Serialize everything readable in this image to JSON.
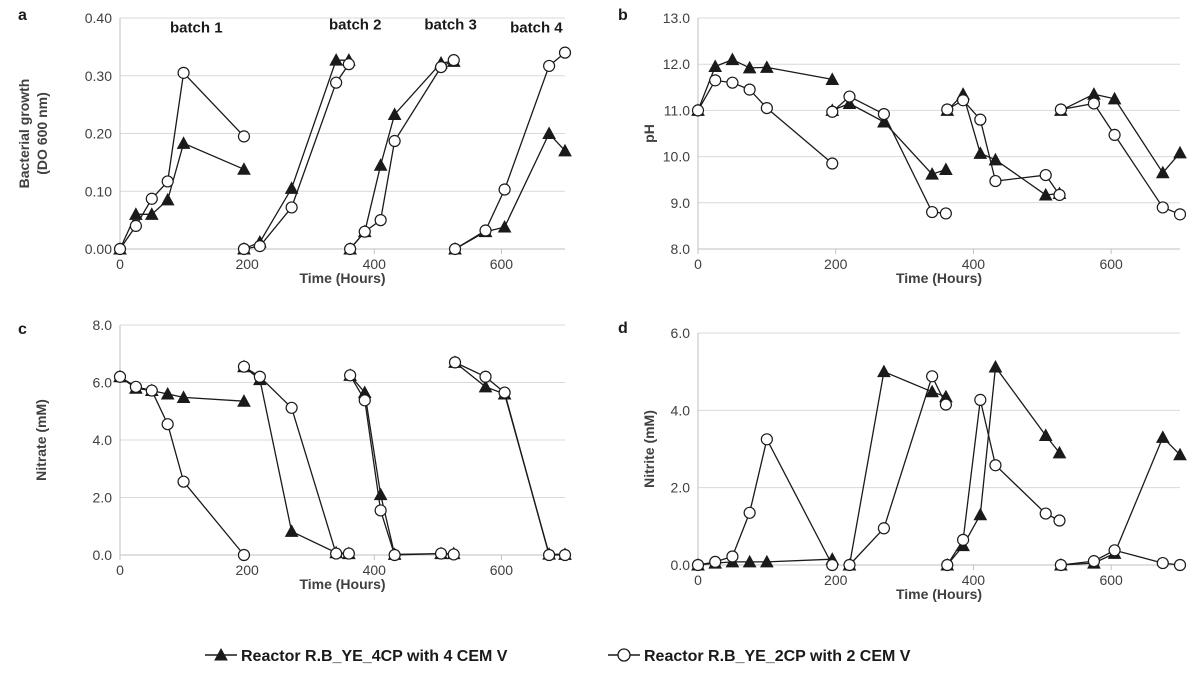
{
  "legend": [
    {
      "label": "Reactor R.B_YE_4CP with 4 CEM V",
      "marker": "triangle"
    },
    {
      "label": "Reactor R.B_YE_2CP with 2 CEM V",
      "marker": "circle"
    }
  ],
  "chart_data": [
    {
      "type": "line",
      "panel": "a",
      "xlabel": "Time (Hours)",
      "ylabel": [
        "Bacterial growth",
        "(DO 600 nm)"
      ],
      "xlim": [
        0,
        700
      ],
      "xticks": [
        0,
        200,
        400,
        600
      ],
      "ylim": [
        0,
        0.4
      ],
      "yticks": [
        0,
        0.1,
        0.2,
        0.3,
        0.4
      ],
      "ydecimals": 2,
      "grid": "horizontal",
      "annotations": [
        {
          "text": "batch 1",
          "x": 120,
          "y": 0.375
        },
        {
          "text": "batch 2",
          "x": 370,
          "y": 0.38
        },
        {
          "text": "batch 3",
          "x": 520,
          "y": 0.38
        },
        {
          "text": "batch 4",
          "x": 655,
          "y": 0.375
        }
      ],
      "series": [
        {
          "marker": "triangle",
          "segments": [
            [
              [
                0,
                0
              ],
              [
                25,
                0.06
              ],
              [
                50,
                0.06
              ],
              [
                75,
                0.085
              ],
              [
                100,
                0.183
              ],
              [
                195,
                0.138
              ]
            ],
            [
              [
                195,
                0
              ],
              [
                220,
                0.012
              ],
              [
                270,
                0.105
              ],
              [
                340,
                0.327
              ],
              [
                360,
                0.327
              ]
            ],
            [
              [
                362,
                0
              ],
              [
                385,
                0.03
              ],
              [
                410,
                0.145
              ],
              [
                432,
                0.233
              ],
              [
                505,
                0.322
              ],
              [
                525,
                0.325
              ]
            ],
            [
              [
                527,
                0
              ],
              [
                575,
                0.03
              ],
              [
                605,
                0.038
              ],
              [
                675,
                0.2
              ],
              [
                700,
                0.17
              ]
            ]
          ]
        },
        {
          "marker": "circle",
          "segments": [
            [
              [
                0,
                0
              ],
              [
                25,
                0.04
              ],
              [
                50,
                0.087
              ],
              [
                75,
                0.117
              ],
              [
                100,
                0.305
              ],
              [
                195,
                0.195
              ]
            ],
            [
              [
                195,
                0
              ],
              [
                220,
                0.005
              ],
              [
                270,
                0.072
              ],
              [
                340,
                0.288
              ],
              [
                360,
                0.32
              ]
            ],
            [
              [
                362,
                0
              ],
              [
                385,
                0.03
              ],
              [
                410,
                0.05
              ],
              [
                432,
                0.187
              ],
              [
                505,
                0.315
              ],
              [
                525,
                0.327
              ]
            ],
            [
              [
                527,
                0
              ],
              [
                575,
                0.032
              ],
              [
                605,
                0.103
              ],
              [
                675,
                0.317
              ],
              [
                700,
                0.34
              ]
            ]
          ]
        }
      ]
    },
    {
      "type": "line",
      "panel": "b",
      "xlabel": "Time (Hours)",
      "ylabel": [
        "pH"
      ],
      "xlim": [
        0,
        700
      ],
      "xticks": [
        0,
        200,
        400,
        600
      ],
      "ylim": [
        8,
        13
      ],
      "yticks": [
        8,
        9,
        10,
        11,
        12,
        13
      ],
      "ydecimals": 1,
      "grid": "horizontal",
      "series": [
        {
          "marker": "triangle",
          "segments": [
            [
              [
                0,
                11
              ],
              [
                25,
                11.95
              ],
              [
                50,
                12.1
              ],
              [
                75,
                11.92
              ],
              [
                100,
                11.93
              ],
              [
                195,
                11.67
              ]
            ],
            [
              [
                195,
                11
              ],
              [
                220,
                11.15
              ],
              [
                270,
                10.75
              ],
              [
                340,
                9.62
              ],
              [
                360,
                9.72
              ]
            ],
            [
              [
                362,
                11
              ],
              [
                385,
                11.35
              ],
              [
                410,
                10.07
              ],
              [
                432,
                9.93
              ],
              [
                505,
                9.17
              ],
              [
                525,
                9.2
              ]
            ],
            [
              [
                527,
                11
              ],
              [
                575,
                11.35
              ],
              [
                605,
                11.25
              ],
              [
                675,
                9.65
              ],
              [
                700,
                10.08
              ]
            ]
          ]
        },
        {
          "marker": "circle",
          "segments": [
            [
              [
                0,
                11
              ],
              [
                25,
                11.65
              ],
              [
                50,
                11.6
              ],
              [
                75,
                11.45
              ],
              [
                100,
                11.05
              ],
              [
                195,
                9.85
              ]
            ],
            [
              [
                195,
                10.97
              ],
              [
                220,
                11.3
              ],
              [
                270,
                10.92
              ],
              [
                340,
                8.8
              ],
              [
                360,
                8.77
              ]
            ],
            [
              [
                362,
                11.02
              ],
              [
                385,
                11.22
              ],
              [
                410,
                10.8
              ],
              [
                432,
                9.47
              ],
              [
                505,
                9.6
              ],
              [
                525,
                9.17
              ]
            ],
            [
              [
                527,
                11.02
              ],
              [
                575,
                11.15
              ],
              [
                605,
                10.47
              ],
              [
                675,
                8.9
              ],
              [
                700,
                8.75
              ]
            ]
          ]
        }
      ]
    },
    {
      "type": "line",
      "panel": "c",
      "xlabel": "Time (Hours)",
      "ylabel": [
        "Nitrate (mM)"
      ],
      "xlim": [
        0,
        700
      ],
      "xticks": [
        0,
        200,
        400,
        600
      ],
      "ylim": [
        0,
        8
      ],
      "yticks": [
        0,
        2,
        4,
        6,
        8
      ],
      "ydecimals": 1,
      "grid": "horizontal",
      "series": [
        {
          "marker": "triangle",
          "segments": [
            [
              [
                0,
                6.2
              ],
              [
                25,
                5.8
              ],
              [
                50,
                5.72
              ],
              [
                75,
                5.6
              ],
              [
                100,
                5.48
              ],
              [
                195,
                5.35
              ]
            ],
            [
              [
                195,
                6.55
              ],
              [
                220,
                6.1
              ],
              [
                270,
                0.82
              ],
              [
                340,
                0.08
              ],
              [
                360,
                0.05
              ]
            ],
            [
              [
                362,
                6.25
              ],
              [
                385,
                5.65
              ],
              [
                410,
                2.1
              ],
              [
                432,
                0.02
              ],
              [
                505,
                0.05
              ],
              [
                525,
                0.05
              ]
            ],
            [
              [
                527,
                6.7
              ],
              [
                575,
                5.85
              ],
              [
                605,
                5.6
              ],
              [
                675,
                0.03
              ],
              [
                700,
                0.02
              ]
            ]
          ]
        },
        {
          "marker": "circle",
          "segments": [
            [
              [
                0,
                6.2
              ],
              [
                25,
                5.85
              ],
              [
                50,
                5.72
              ],
              [
                75,
                4.55
              ],
              [
                100,
                2.55
              ],
              [
                195,
                0
              ]
            ],
            [
              [
                195,
                6.55
              ],
              [
                220,
                6.2
              ],
              [
                270,
                5.12
              ],
              [
                340,
                0.05
              ],
              [
                360,
                0.05
              ]
            ],
            [
              [
                362,
                6.25
              ],
              [
                385,
                5.38
              ],
              [
                410,
                1.55
              ],
              [
                432,
                0
              ],
              [
                505,
                0.05
              ],
              [
                525,
                0.02
              ]
            ],
            [
              [
                527,
                6.7
              ],
              [
                575,
                6.2
              ],
              [
                605,
                5.65
              ],
              [
                675,
                0
              ],
              [
                700,
                0
              ]
            ]
          ]
        }
      ]
    },
    {
      "type": "line",
      "panel": "d",
      "xlabel": "Time (Hours)",
      "ylabel": [
        "Nitrite (mM)"
      ],
      "xlim": [
        0,
        700
      ],
      "xticks": [
        0,
        200,
        400,
        600
      ],
      "ylim": [
        0,
        6
      ],
      "yticks": [
        0,
        2,
        4,
        6
      ],
      "ydecimals": 1,
      "grid": "horizontal",
      "series": [
        {
          "marker": "triangle",
          "segments": [
            [
              [
                0,
                0
              ],
              [
                25,
                0.05
              ],
              [
                50,
                0.08
              ],
              [
                75,
                0.08
              ],
              [
                100,
                0.08
              ],
              [
                195,
                0.15
              ]
            ],
            [
              [
                220,
                0
              ],
              [
                270,
                5
              ],
              [
                340,
                4.48
              ],
              [
                360,
                4.35
              ]
            ],
            [
              [
                362,
                0
              ],
              [
                385,
                0.5
              ],
              [
                410,
                1.3
              ],
              [
                432,
                5.12
              ],
              [
                505,
                3.35
              ],
              [
                525,
                2.9
              ]
            ],
            [
              [
                527,
                0
              ],
              [
                575,
                0.05
              ],
              [
                605,
                0.3
              ],
              [
                675,
                3.3
              ],
              [
                700,
                2.85
              ]
            ]
          ]
        },
        {
          "marker": "circle",
          "segments": [
            [
              [
                0,
                0
              ],
              [
                25,
                0.08
              ],
              [
                50,
                0.22
              ],
              [
                75,
                1.35
              ],
              [
                100,
                3.25
              ],
              [
                195,
                0
              ]
            ],
            [
              [
                220,
                0
              ],
              [
                270,
                0.95
              ],
              [
                340,
                4.88
              ],
              [
                360,
                4.15
              ]
            ],
            [
              [
                362,
                0
              ],
              [
                385,
                0.65
              ],
              [
                410,
                4.27
              ],
              [
                432,
                2.58
              ],
              [
                505,
                1.33
              ],
              [
                525,
                1.15
              ]
            ],
            [
              [
                527,
                0
              ],
              [
                575,
                0.1
              ],
              [
                605,
                0.38
              ],
              [
                675,
                0.05
              ],
              [
                700,
                0
              ]
            ]
          ]
        }
      ]
    }
  ]
}
